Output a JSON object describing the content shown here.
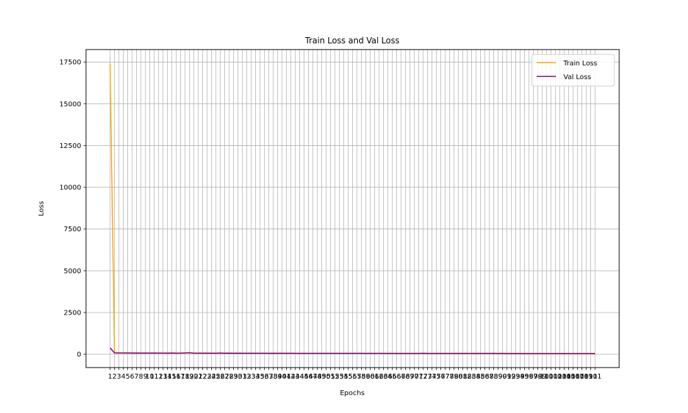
{
  "chart_data": {
    "type": "line",
    "title": "Train Loss and Val Loss",
    "xlabel": "Epochs",
    "ylabel": "Loss",
    "x_range": [
      1,
      111
    ],
    "ylim": [
      -800,
      18250
    ],
    "yticks": [
      0,
      2500,
      5000,
      7500,
      10000,
      12500,
      15000,
      17500
    ],
    "ytick_labels": [
      "0",
      "2500",
      "5000",
      "7500",
      "10000",
      "12500",
      "15000",
      "17500"
    ],
    "grid": true,
    "legend_position": "top-right",
    "series": [
      {
        "name": "Train Loss",
        "color": "#ffa500",
        "values": [
          17400,
          95,
          88,
          84,
          82,
          80,
          79,
          78,
          77,
          76,
          75,
          74,
          73,
          72,
          71,
          71,
          70,
          69,
          69,
          68,
          68,
          67,
          67,
          66,
          66,
          65,
          65,
          64,
          64,
          63,
          63,
          62,
          62,
          62,
          61,
          61,
          60,
          60,
          60,
          59,
          59,
          59,
          58,
          58,
          58,
          57,
          57,
          57,
          56,
          56,
          56,
          56,
          55,
          55,
          55,
          55,
          54,
          54,
          54,
          54,
          53,
          53,
          53,
          53,
          53,
          52,
          52,
          52,
          52,
          52,
          51,
          51,
          51,
          51,
          51,
          50,
          50,
          50,
          50,
          50,
          50,
          49,
          49,
          49,
          49,
          49,
          49,
          48,
          48,
          48,
          48,
          48,
          48,
          48,
          47,
          47,
          47,
          47,
          47,
          47,
          47,
          46,
          46,
          46,
          46,
          46,
          46,
          46,
          45,
          45,
          45
        ]
      },
      {
        "name": "Val Loss",
        "color": "#800080",
        "values": [
          380,
          75,
          72,
          70,
          74,
          68,
          71,
          66,
          69,
          65,
          72,
          64,
          67,
          63,
          70,
          62,
          66,
          78,
          90,
          64,
          60,
          63,
          59,
          62,
          58,
          72,
          57,
          60,
          56,
          59,
          55,
          58,
          54,
          57,
          53,
          56,
          52,
          55,
          52,
          54,
          51,
          53,
          51,
          52,
          50,
          52,
          50,
          51,
          49,
          51,
          49,
          50,
          48,
          50,
          48,
          49,
          48,
          49,
          47,
          48,
          47,
          48,
          46,
          47,
          46,
          47,
          46,
          46,
          45,
          46,
          45,
          58,
          45,
          45,
          44,
          45,
          44,
          45,
          44,
          44,
          43,
          44,
          43,
          44,
          43,
          43,
          43,
          52,
          42,
          43,
          42,
          42,
          42,
          42,
          41,
          42,
          41,
          41,
          41,
          41,
          40,
          41,
          40,
          40,
          40,
          40,
          40,
          39,
          39,
          39,
          39
        ]
      }
    ]
  }
}
